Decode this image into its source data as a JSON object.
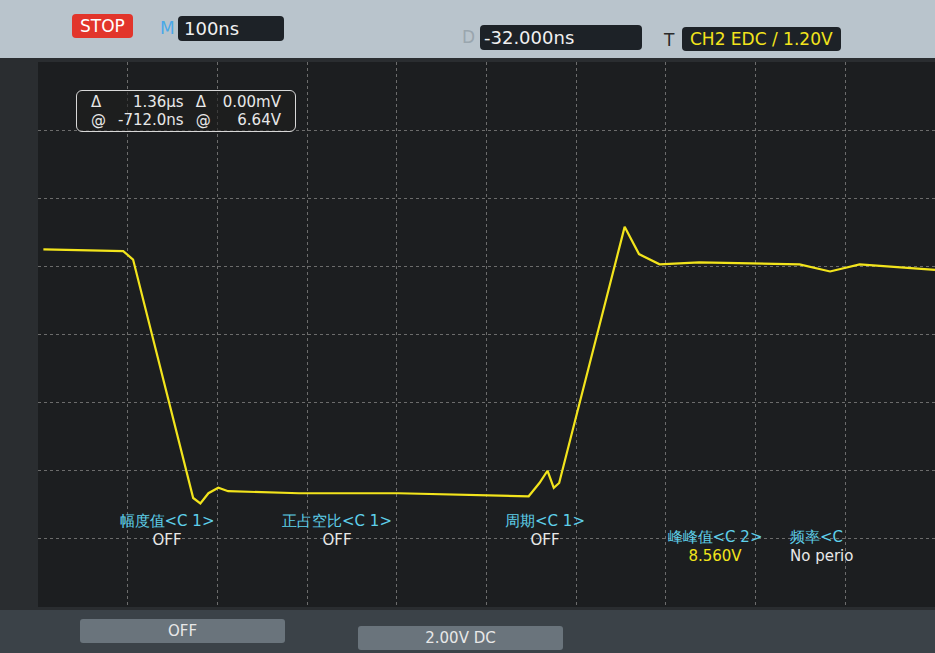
{
  "chart_data": {
    "type": "line",
    "x": [
      -594,
      -505,
      -494,
      -427,
      -419,
      -410,
      -399,
      -388,
      -309,
      -198,
      -53,
      -41,
      -32,
      -25,
      -19,
      54,
      70,
      93,
      137,
      249,
      283,
      316,
      400
    ],
    "series": [
      {
        "color": "#f2e41c",
        "values": [
          6.5,
          6.45,
          6.2,
          -0.8,
          -0.96,
          -0.66,
          -0.5,
          -0.6,
          -0.66,
          -0.66,
          -0.75,
          -0.36,
          0,
          -0.5,
          -0.36,
          7.16,
          6.36,
          6.06,
          6.12,
          6.06,
          5.85,
          6.06,
          5.9
        ]
      }
    ],
    "xlim": [
      -600,
      400
    ],
    "xticks": [
      -600,
      -500,
      -400,
      -300,
      -200,
      -100,
      0,
      100,
      200,
      300,
      400
    ],
    "ylim": [
      -4,
      12
    ],
    "yticks": [
      -4,
      -2,
      0,
      2,
      4,
      6,
      8,
      10,
      12
    ],
    "grid": true,
    "tick_labels": false
  },
  "screen": {
    "status": "STOP",
    "timebase": {
      "label": "M",
      "value": "100ns"
    },
    "delay": {
      "label": "D",
      "value": "-32.000ns"
    },
    "trigger": {
      "label": "T",
      "value": "CH2 EDC / 1.20V"
    },
    "cursors": [
      [
        "Δ",
        "1.36μs",
        "Δ",
        "0.00mV"
      ],
      [
        "@",
        "-712.0ns",
        "@",
        "6.64V"
      ]
    ],
    "measurements": [
      {
        "label": "幅度值<C 1>",
        "value": "OFF"
      },
      {
        "label": "正占空比<C 1>",
        "value": "OFF"
      },
      {
        "label": "周期<C 1>",
        "value": "OFF"
      },
      {
        "label": "峰峰值<C 2>",
        "value": "8.560V"
      },
      {
        "label": "频率<C",
        "value": "No perio"
      }
    ],
    "bottom": [
      "OFF",
      "2.00V DC"
    ]
  }
}
